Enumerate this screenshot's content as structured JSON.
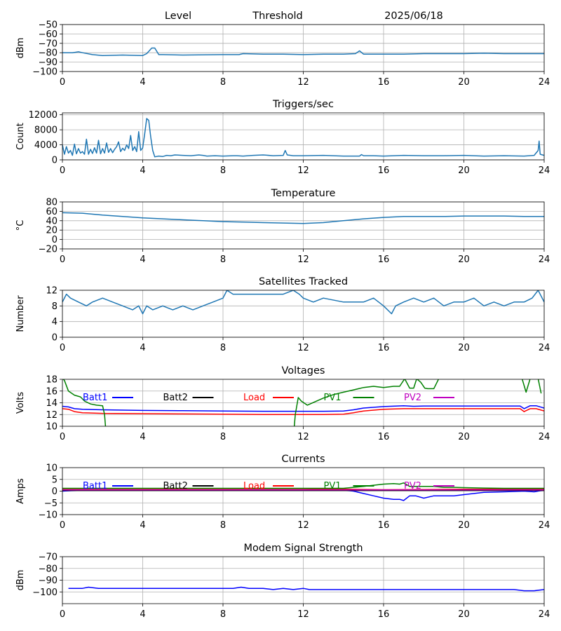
{
  "header": {
    "level": "Level",
    "threshold": "Threshold",
    "date": "2025/06/18"
  },
  "x_ticks": [
    0,
    4,
    8,
    12,
    16,
    20,
    24
  ],
  "legend_labels": [
    "Batt1",
    "Batt2",
    "Load",
    "PV1",
    "PV2"
  ],
  "legend_colors": [
    "#0000ff",
    "#000000",
    "#ff0000",
    "#008000",
    "#bf00bf"
  ],
  "chart_data": [
    {
      "type": "line",
      "title": "",
      "ylabel": "dBm",
      "ylim": [
        -100,
        -50
      ],
      "yticks": [
        -50,
        -60,
        -70,
        -80,
        -90,
        -100
      ],
      "xlim": [
        0,
        24
      ],
      "grid": true,
      "series": [
        {
          "color": "#1f77b4",
          "x": [
            0,
            0.5,
            0.8,
            1,
            1.5,
            2,
            3,
            4,
            4.2,
            4.45,
            4.6,
            4.8,
            5,
            6,
            8,
            8.8,
            9,
            10,
            11,
            12,
            13,
            14,
            14.6,
            14.8,
            15,
            16,
            17,
            18,
            19,
            20,
            21,
            22,
            23,
            24
          ],
          "y": [
            -80,
            -80,
            -79,
            -80,
            -82,
            -83,
            -82.5,
            -83,
            -81,
            -75,
            -75,
            -82,
            -82,
            -82.5,
            -82,
            -82,
            -81,
            -81.5,
            -81.5,
            -82,
            -81.5,
            -81.5,
            -81,
            -78,
            -81.5,
            -81.5,
            -81.5,
            -81,
            -81,
            -81,
            -80.5,
            -81,
            -81,
            -81
          ]
        }
      ]
    },
    {
      "type": "line",
      "title": "Triggers/sec",
      "ylabel": "Count",
      "ylim": [
        0,
        12500
      ],
      "yticks": [
        0,
        4000,
        8000,
        12000
      ],
      "xlim": [
        0,
        24
      ],
      "grid": true,
      "series": [
        {
          "color": "#1f77b4",
          "x": [
            0,
            0.1,
            0.2,
            0.3,
            0.4,
            0.5,
            0.6,
            0.7,
            0.8,
            0.9,
            1,
            1.1,
            1.2,
            1.3,
            1.4,
            1.5,
            1.6,
            1.7,
            1.8,
            1.9,
            2,
            2.1,
            2.2,
            2.3,
            2.4,
            2.5,
            2.6,
            2.7,
            2.8,
            2.9,
            3,
            3.1,
            3.2,
            3.3,
            3.4,
            3.5,
            3.6,
            3.7,
            3.8,
            3.9,
            4,
            4.1,
            4.2,
            4.3,
            4.4,
            4.5,
            4.6,
            4.8,
            5,
            5.2,
            5.4,
            5.6,
            6,
            6.4,
            6.8,
            7,
            7.2,
            7.6,
            8,
            8.5,
            8.7,
            9,
            9.5,
            10,
            10.5,
            11,
            11.1,
            11.2,
            11.5,
            12,
            13,
            14,
            14.8,
            14.9,
            15,
            15.5,
            16,
            17,
            18,
            19,
            20,
            21,
            22,
            23,
            23.5,
            23.7,
            23.75,
            23.8,
            24
          ],
          "y": [
            4000,
            1500,
            3500,
            1800,
            2500,
            1200,
            4200,
            1600,
            3000,
            1800,
            2200,
            1500,
            5500,
            1500,
            2800,
            1700,
            3200,
            1800,
            5200,
            1600,
            3000,
            1800,
            4500,
            2000,
            3000,
            1900,
            2800,
            3500,
            4800,
            2200,
            3100,
            2500,
            4000,
            3000,
            6500,
            2500,
            3500,
            2200,
            7500,
            2500,
            3200,
            7000,
            11000,
            10500,
            6000,
            2500,
            800,
            1000,
            900,
            1200,
            1100,
            1300,
            1200,
            1100,
            1300,
            1200,
            1000,
            1100,
            1000,
            1100,
            1100,
            1000,
            1200,
            1300,
            1100,
            1200,
            2500,
            1300,
            1100,
            1100,
            1200,
            1000,
            1000,
            1400,
            1100,
            1100,
            1000,
            1200,
            1100,
            1100,
            1200,
            1000,
            1100,
            1000,
            1200,
            2500,
            5000,
            1500,
            1200
          ]
        }
      ]
    },
    {
      "type": "line",
      "title": "Temperature",
      "ylabel": "°C",
      "ylim": [
        -20,
        80
      ],
      "yticks": [
        80,
        60,
        40,
        20,
        0,
        -20
      ],
      "xlim": [
        0,
        24
      ],
      "grid": true,
      "series": [
        {
          "color": "#1f77b4",
          "x": [
            0,
            1,
            2,
            3,
            4,
            5,
            6,
            7,
            8,
            9,
            10,
            11,
            12,
            13,
            14,
            15,
            16,
            17,
            18,
            19,
            20,
            21,
            22,
            23,
            24
          ],
          "y": [
            57,
            56,
            52,
            49,
            46,
            44,
            42,
            40,
            38,
            37,
            36,
            35,
            34,
            36,
            40,
            44,
            47,
            49,
            49,
            49,
            50,
            50,
            50,
            49,
            49
          ]
        }
      ]
    },
    {
      "type": "line",
      "title": "Satellites Tracked",
      "ylabel": "Number",
      "ylim": [
        0,
        12
      ],
      "yticks": [
        0,
        4,
        8,
        12
      ],
      "xlim": [
        0,
        24
      ],
      "grid": true,
      "series": [
        {
          "color": "#1f77b4",
          "x": [
            0,
            0.2,
            0.4,
            0.8,
            1.2,
            1.5,
            2,
            2.5,
            3,
            3.5,
            3.8,
            4,
            4.2,
            4.5,
            5,
            5.5,
            6,
            6.5,
            7,
            7.5,
            8,
            8.2,
            8.5,
            9,
            10,
            11,
            11.5,
            11.8,
            12,
            12.5,
            13,
            14,
            15,
            15.5,
            16,
            16.4,
            16.6,
            17,
            17.5,
            18,
            18.5,
            19,
            19.5,
            20,
            20.5,
            21,
            21.5,
            22,
            22.5,
            23,
            23.4,
            23.7,
            24
          ],
          "y": [
            9,
            11,
            10,
            9,
            8,
            9,
            10,
            9,
            8,
            7,
            8,
            6,
            8,
            7,
            8,
            7,
            8,
            7,
            8,
            9,
            10,
            12,
            11,
            11,
            11,
            11,
            12,
            11,
            10,
            9,
            10,
            9,
            9,
            10,
            8,
            6,
            8,
            9,
            10,
            9,
            10,
            8,
            9,
            9,
            10,
            8,
            9,
            8,
            9,
            9,
            10,
            12,
            9
          ]
        }
      ]
    },
    {
      "type": "line",
      "title": "Voltages",
      "ylabel": "Volts",
      "ylim": [
        10,
        18
      ],
      "yticks": [
        10,
        12,
        14,
        16,
        18
      ],
      "xlim": [
        0,
        24
      ],
      "grid": true,
      "series": [
        {
          "name": "Batt1",
          "color": "#0000ff",
          "x": [
            0,
            0.3,
            0.6,
            1,
            2,
            4,
            6,
            8,
            10,
            12,
            13,
            14,
            14.5,
            15,
            16,
            17,
            17.5,
            18,
            19,
            20,
            21,
            22,
            22.8,
            23,
            23.3,
            23.6,
            24
          ],
          "y": [
            13.4,
            13.3,
            13,
            12.9,
            12.8,
            12.7,
            12.65,
            12.6,
            12.55,
            12.55,
            12.55,
            12.6,
            12.8,
            13.1,
            13.35,
            13.5,
            13.4,
            13.45,
            13.45,
            13.45,
            13.45,
            13.45,
            13.45,
            13,
            13.5,
            13.5,
            13.1
          ]
        },
        {
          "name": "Load",
          "color": "#ff0000",
          "x": [
            0,
            0.3,
            0.6,
            1,
            2,
            4,
            6,
            8,
            10,
            12,
            13,
            14,
            14.5,
            15,
            16,
            17,
            18,
            19,
            20,
            21,
            22,
            22.8,
            23,
            23.3,
            23.6,
            24
          ],
          "y": [
            13,
            12.9,
            12.5,
            12.3,
            12.2,
            12.15,
            12.1,
            12.05,
            12,
            12,
            12,
            12.05,
            12.3,
            12.6,
            12.9,
            13,
            13,
            13,
            13,
            13,
            13,
            13,
            12.5,
            13,
            13,
            12.6
          ]
        },
        {
          "name": "PV1",
          "color": "#008000",
          "x": [
            0,
            0.1,
            0.3,
            0.6,
            0.9,
            1.1,
            1.4,
            1.7,
            2,
            2.1,
            2.15,
            11.55,
            11.6,
            11.75,
            11.9,
            12.2,
            12.6,
            13,
            13.5,
            14,
            14.5,
            15,
            15.5,
            16,
            16.5,
            16.8,
            17.05,
            17.3,
            17.5,
            17.65,
            17.85,
            18.05,
            18.2,
            18.5,
            18.75,
            18.9,
            22.7,
            22.9,
            23.1,
            23.3,
            23.5,
            23.7,
            23.85
          ],
          "y": [
            18.2,
            17.8,
            16,
            15.3,
            15,
            14.3,
            13.8,
            13.6,
            13.5,
            12,
            9.9,
            9.9,
            12,
            14.9,
            14.3,
            13.6,
            14.2,
            14.8,
            15.4,
            15.8,
            16.2,
            16.6,
            16.8,
            16.6,
            16.8,
            16.8,
            18.1,
            16.5,
            16.5,
            18.1,
            17.5,
            16.5,
            16.4,
            16.4,
            18.1,
            18.1,
            18.1,
            18.1,
            15.8,
            18.1,
            18.1,
            18.1,
            15.6
          ]
        }
      ]
    },
    {
      "type": "line",
      "title": "Currents",
      "ylabel": "Amps",
      "ylim": [
        -10,
        10
      ],
      "yticks": [
        10,
        5,
        0,
        -5,
        -10
      ],
      "xlim": [
        0,
        24
      ],
      "grid": true,
      "series": [
        {
          "name": "Batt1",
          "color": "#0000ff",
          "x": [
            0,
            1,
            2,
            4,
            6,
            8,
            10,
            12,
            13,
            14,
            14.5,
            15,
            15.5,
            16,
            16.5,
            16.8,
            17,
            17.3,
            17.6,
            18,
            18.5,
            19,
            19.5,
            20,
            21,
            22,
            23,
            23.5,
            24
          ],
          "y": [
            0,
            0.5,
            0.5,
            0.5,
            0.5,
            0.5,
            0.5,
            0.5,
            0.5,
            0.5,
            0,
            -1,
            -2,
            -3,
            -3.5,
            -3.5,
            -4,
            -2,
            -2,
            -3,
            -2,
            -2,
            -2,
            -1.5,
            -0.5,
            -0.3,
            0,
            -0.3,
            0.5
          ]
        },
        {
          "name": "Batt2",
          "color": "#000000",
          "x": [
            0,
            24
          ],
          "y": [
            0.3,
            0.3
          ]
        },
        {
          "name": "Load",
          "color": "#ff0000",
          "x": [
            0,
            1,
            4,
            8,
            12,
            14,
            16,
            18,
            20,
            24
          ],
          "y": [
            1,
            1,
            1,
            1,
            1,
            0.8,
            0.6,
            0.7,
            0.8,
            0.8
          ]
        },
        {
          "name": "PV1",
          "color": "#008000",
          "x": [
            0,
            1,
            2,
            4,
            8,
            12,
            13,
            14,
            14.5,
            15,
            15.5,
            16,
            16.5,
            16.8,
            17,
            17.3,
            17.6,
            18,
            18.5,
            19,
            19.5,
            20,
            21,
            22,
            23,
            24
          ],
          "y": [
            1.2,
            1.2,
            1.2,
            1.2,
            1.2,
            1.2,
            1.2,
            1.2,
            1.6,
            2,
            2.5,
            3,
            3.2,
            3,
            3.5,
            2,
            2,
            2,
            2,
            1.6,
            1.6,
            1.5,
            1.3,
            1.2,
            1.2,
            1.2
          ]
        },
        {
          "name": "PV2",
          "color": "#bf00bf",
          "x": [
            0,
            24
          ],
          "y": [
            0.5,
            0.5
          ]
        }
      ]
    },
    {
      "type": "line",
      "title": "Modem Signal Strength",
      "ylabel": "dBm",
      "ylim": [
        -110,
        -70
      ],
      "yticks": [
        -70,
        -80,
        -90,
        -100
      ],
      "xlim": [
        0,
        24
      ],
      "grid": true,
      "series": [
        {
          "color": "#0000ff",
          "x": [
            0.3,
            1,
            1.3,
            1.8,
            3,
            4,
            5,
            6,
            7,
            8,
            8.5,
            8.9,
            9.3,
            10,
            10.5,
            11,
            11.5,
            12,
            12.3,
            13,
            14,
            15,
            16,
            17,
            18,
            19,
            20,
            21,
            22,
            22.5,
            23,
            23.5,
            24
          ],
          "y": [
            -97,
            -97,
            -96,
            -97,
            -97,
            -97,
            -97,
            -97,
            -97,
            -97,
            -97,
            -96,
            -97,
            -97,
            -98,
            -97,
            -98,
            -97,
            -98,
            -98,
            -98,
            -98,
            -98,
            -98,
            -98,
            -98,
            -98,
            -98,
            -98,
            -98,
            -99,
            -99,
            -98
          ]
        }
      ]
    }
  ]
}
